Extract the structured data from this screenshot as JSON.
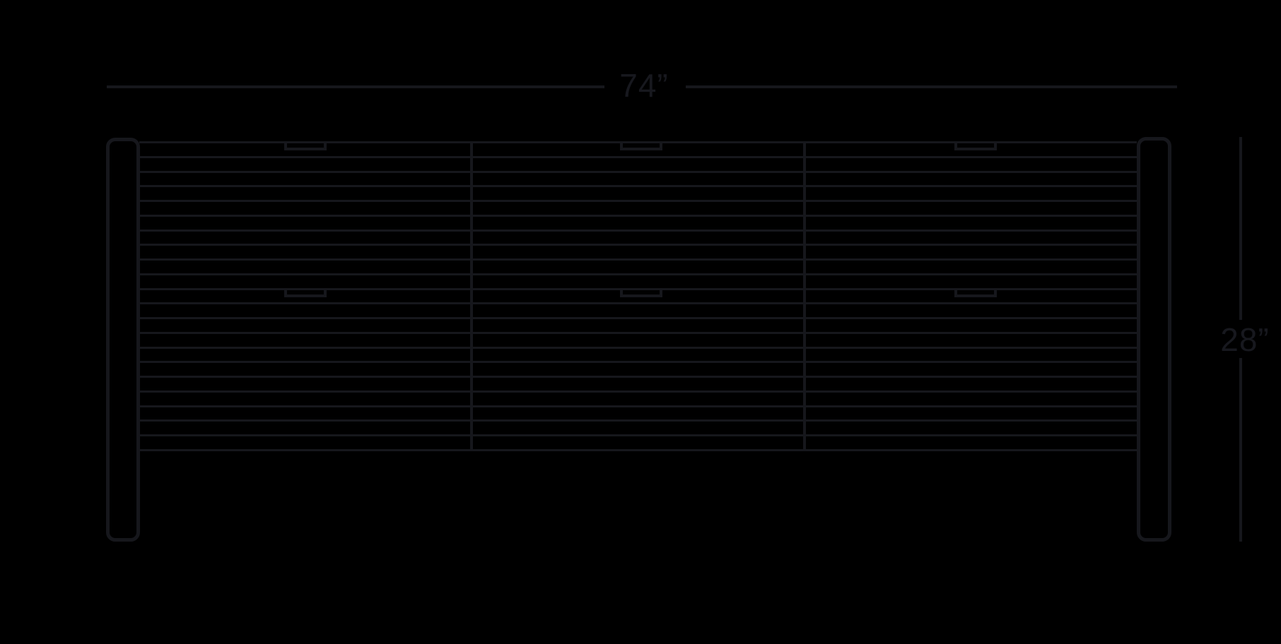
{
  "diagram": {
    "kind": "furniture-dimension-drawing",
    "subject": "three-section slatted credenza, front elevation"
  },
  "dimensions": {
    "width_label": "74”",
    "height_label": "28”"
  },
  "furniture": {
    "slat_line_count": 22,
    "section_count": 3,
    "divider_count": 2,
    "drawer_pull_rows": 2,
    "drawer_pulls_per_row": 3,
    "leg_count": 2
  },
  "colors": {
    "background": "#000000",
    "line": "#16171c",
    "text": "#17181e"
  }
}
